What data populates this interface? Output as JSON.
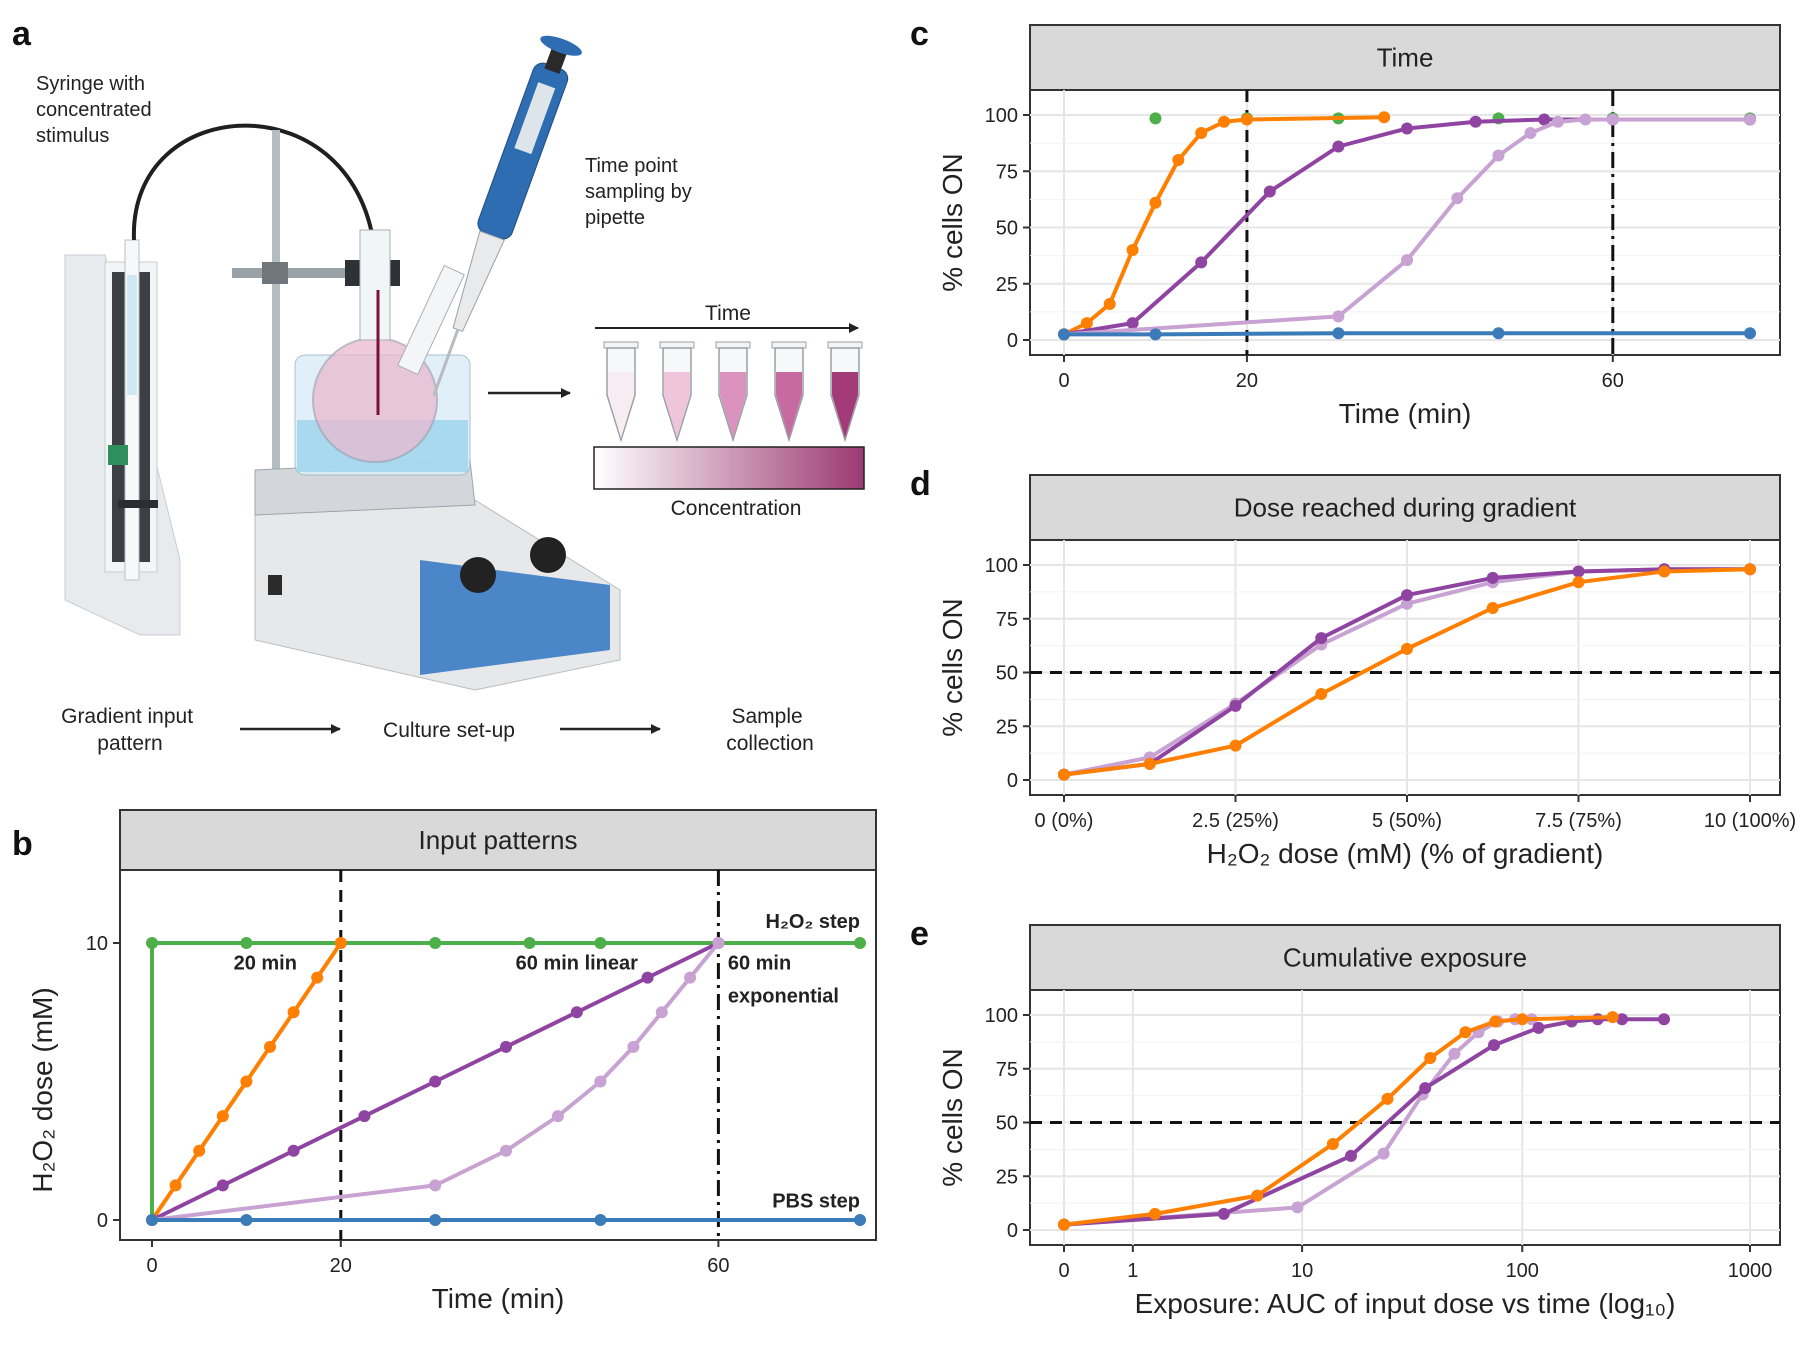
{
  "panel_labels": {
    "a": "a",
    "b": "b",
    "c": "c",
    "d": "d",
    "e": "e"
  },
  "schematic": {
    "syringe_label": [
      "Syringe with",
      "concentrated",
      "stimulus"
    ],
    "pipette_label": [
      "Time point",
      "sampling by",
      "pipette"
    ],
    "time_label": "Time",
    "concentration_label": "Concentration",
    "flow": [
      "Gradient input pattern",
      "Culture set-up",
      "Sample collection"
    ],
    "flow_lines": [
      [
        "Gradient input",
        "pattern"
      ],
      [
        "Culture set-up"
      ],
      [
        "Sample",
        "collection"
      ]
    ],
    "tube_colors": [
      "#f6ecf2",
      "#efc5dc",
      "#dc92be",
      "#c76aa2",
      "#a33b78"
    ],
    "gradient_colors": [
      "#ffffff",
      "#9c3a72"
    ]
  },
  "chart_data": [
    {
      "panel": "b",
      "type": "line",
      "title": "Input patterns",
      "xlabel": "Time (min)",
      "ylabel": "H2O2 dose (mM)",
      "xlim": [
        0,
        75
      ],
      "ylim": [
        0,
        10
      ],
      "xticks": [
        0,
        20,
        60
      ],
      "yticks": [
        0,
        10
      ],
      "vlines": [
        {
          "x": 20,
          "style": "dashed"
        },
        {
          "x": 60,
          "style": "dashdot"
        }
      ],
      "annotations": [
        {
          "text": "20 min",
          "x": 12,
          "y": 9.3
        },
        {
          "text": "60 min linear",
          "x": 45,
          "y": 9.3
        },
        {
          "text": "60 min",
          "x": 61,
          "y": 9.3
        },
        {
          "text": "exponential",
          "x": 61,
          "y": 8.1
        },
        {
          "text": "H2O2 step",
          "x": 75,
          "y": 10.8
        },
        {
          "text": "PBS step",
          "x": 75,
          "y": 0.7
        }
      ],
      "series": [
        {
          "name": "H2O2 step",
          "color": "#4daf4a",
          "x": [
            0,
            0,
            10,
            20,
            30,
            40,
            47.5,
            75
          ],
          "y": [
            0,
            10,
            10,
            10,
            10,
            10,
            10,
            10
          ]
        },
        {
          "name": "20 min",
          "color": "#ff7f00",
          "x": [
            0,
            2.5,
            5,
            7.5,
            10,
            12.5,
            15,
            17.5,
            20
          ],
          "y": [
            0,
            1.25,
            2.5,
            3.75,
            5,
            6.25,
            7.5,
            8.75,
            10
          ]
        },
        {
          "name": "60 min linear",
          "color": "#8f44a2",
          "x": [
            0,
            7.5,
            15,
            22.5,
            30,
            37.5,
            45,
            52.5,
            60
          ],
          "y": [
            0,
            1.25,
            2.5,
            3.75,
            5,
            6.25,
            7.5,
            8.75,
            10
          ]
        },
        {
          "name": "60 min exponential",
          "color": "#c7a2d2",
          "x": [
            0,
            30,
            37.5,
            43,
            47.5,
            51,
            54,
            57,
            60
          ],
          "y": [
            0,
            1.25,
            2.5,
            3.75,
            5,
            6.25,
            7.5,
            8.75,
            10
          ]
        },
        {
          "name": "PBS step",
          "color": "#3a7bb8",
          "x": [
            0,
            10,
            30,
            47.5,
            75
          ],
          "y": [
            0,
            0,
            0,
            0,
            0
          ]
        }
      ]
    },
    {
      "panel": "c",
      "type": "line",
      "title": "Time",
      "xlabel": "Time (min)",
      "ylabel": "% cells ON",
      "xlim": [
        0,
        75
      ],
      "ylim": [
        0,
        100
      ],
      "xticks": [
        0,
        20,
        60
      ],
      "yticks": [
        0,
        25,
        50,
        75,
        100
      ],
      "vlines": [
        {
          "x": 20,
          "style": "dashed"
        },
        {
          "x": 60,
          "style": "dashdot"
        }
      ],
      "series": [
        {
          "name": "H2O2 step",
          "color": "#4daf4a",
          "line": false,
          "x": [
            10,
            20,
            30,
            47.5,
            60,
            75
          ],
          "y": [
            98.5,
            98.5,
            98.5,
            98.5,
            98.5,
            98.5
          ]
        },
        {
          "name": "20 min",
          "color": "#ff7f00",
          "x": [
            0,
            2.5,
            5,
            7.5,
            10,
            12.5,
            15,
            17.5,
            20,
            35
          ],
          "y": [
            2.5,
            7.5,
            16,
            40,
            61,
            80,
            92,
            97,
            98,
            99
          ]
        },
        {
          "name": "60 min linear",
          "color": "#8f44a2",
          "x": [
            0,
            7.5,
            15,
            22.5,
            30,
            37.5,
            45,
            52.5,
            60,
            75
          ],
          "y": [
            2.5,
            7.5,
            34.5,
            66,
            86,
            94,
            97,
            98,
            98,
            98
          ]
        },
        {
          "name": "60 min exponential",
          "color": "#c7a2d2",
          "x": [
            0,
            30,
            37.5,
            43,
            47.5,
            51,
            54,
            57,
            60,
            75
          ],
          "y": [
            2.5,
            10.5,
            35.5,
            63,
            82,
            92,
            97,
            98,
            98,
            98
          ]
        },
        {
          "name": "PBS step",
          "color": "#3a7bb8",
          "x": [
            0,
            10,
            30,
            47.5,
            75
          ],
          "y": [
            2.5,
            2.5,
            3,
            3,
            3
          ]
        }
      ]
    },
    {
      "panel": "d",
      "type": "line",
      "title": "Dose reached during gradient",
      "xlabel": "H2O2 dose (mM) (% of gradient)",
      "ylabel": "% cells ON",
      "xlim": [
        0,
        10
      ],
      "ylim": [
        0,
        100
      ],
      "xticks": [
        0,
        2.5,
        5,
        7.5,
        10
      ],
      "xticklabels": [
        "0 (0%)",
        "2.5 (25%)",
        "5 (50%)",
        "7.5 (75%)",
        "10 (100%)"
      ],
      "yticks": [
        0,
        25,
        50,
        75,
        100
      ],
      "hlines": [
        {
          "y": 50,
          "style": "dashed"
        }
      ],
      "series": [
        {
          "name": "60 min exponential",
          "color": "#c7a2d2",
          "x": [
            0,
            1.25,
            2.5,
            3.75,
            5,
            6.25,
            7.5,
            8.75,
            10
          ],
          "y": [
            2.5,
            10.5,
            35.5,
            63,
            82,
            92,
            97,
            98,
            98
          ]
        },
        {
          "name": "60 min linear",
          "color": "#8f44a2",
          "x": [
            0,
            1.25,
            2.5,
            3.75,
            5,
            6.25,
            7.5,
            8.75,
            10
          ],
          "y": [
            2.5,
            7.5,
            34.5,
            66,
            86,
            94,
            97,
            98,
            98
          ]
        },
        {
          "name": "20 min",
          "color": "#ff7f00",
          "x": [
            0,
            1.25,
            2.5,
            3.75,
            5,
            6.25,
            7.5,
            8.75,
            10
          ],
          "y": [
            2.5,
            7.5,
            16,
            40,
            61,
            80,
            92,
            97,
            98
          ]
        }
      ]
    },
    {
      "panel": "e",
      "type": "line",
      "title": "Cumulative exposure",
      "xlabel": "Exposure: AUC of input dose vs time (log10)",
      "ylabel": "% cells ON",
      "xscale": "log1p",
      "xlim": [
        0,
        1000
      ],
      "ylim": [
        0,
        100
      ],
      "xticks": [
        0,
        1,
        10,
        100,
        1000
      ],
      "yticks": [
        0,
        25,
        50,
        75,
        100
      ],
      "hlines": [
        {
          "y": 50,
          "style": "dashed"
        }
      ],
      "series": [
        {
          "name": "60 min exponential",
          "color": "#c7a2d2",
          "x": [
            0,
            9.5,
            24,
            36,
            50,
            64,
            78,
            93,
            110
          ],
          "y": [
            2.5,
            10.5,
            35.5,
            63,
            82,
            92,
            97,
            98,
            98
          ]
        },
        {
          "name": "60 min linear",
          "color": "#8f44a2",
          "x": [
            0,
            4,
            17,
            37,
            75,
            118,
            165,
            215,
            275,
            420
          ],
          "y": [
            2.5,
            7.5,
            34.5,
            66,
            86,
            94,
            97,
            98,
            98,
            98
          ]
        },
        {
          "name": "20 min",
          "color": "#ff7f00",
          "x": [
            0,
            1.5,
            6,
            14,
            25,
            39,
            56,
            76,
            100,
            250
          ],
          "y": [
            2.5,
            7.5,
            16,
            40,
            61,
            80,
            92,
            97,
            98,
            99
          ]
        }
      ]
    }
  ]
}
